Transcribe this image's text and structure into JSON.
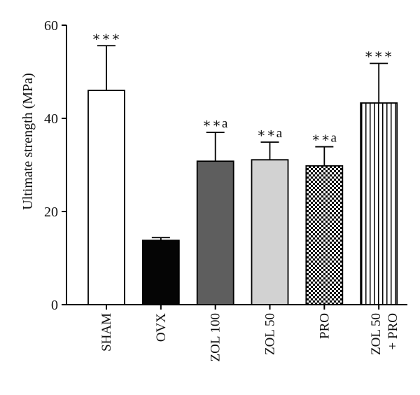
{
  "chart_data": {
    "type": "bar",
    "ylabel": "Ultimate strength (MPa)",
    "ylim": [
      0,
      60
    ],
    "yticks": [
      0,
      20,
      40,
      60
    ],
    "categories": [
      [
        "SHAM"
      ],
      [
        "OVX"
      ],
      [
        "ZOL 100"
      ],
      [
        "ZOL 50"
      ],
      [
        "PRO"
      ],
      [
        "ZOL 50",
        "+ PRO"
      ]
    ],
    "values": [
      46.0,
      13.8,
      30.8,
      31.1,
      29.8,
      43.3
    ],
    "errors": [
      9.6,
      0.6,
      6.2,
      3.8,
      4.1,
      8.5
    ],
    "significance": [
      "***",
      "",
      "**a",
      "**a",
      "**a",
      "***"
    ],
    "fills": [
      "white",
      "#050505",
      "#5e5e5e",
      "#d2d2d2",
      "checker",
      "vstripes"
    ],
    "grid": false,
    "legend": "none"
  }
}
